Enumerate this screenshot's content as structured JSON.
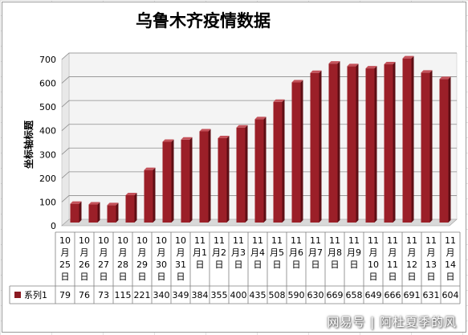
{
  "chart_data": {
    "type": "bar",
    "title": "乌鲁木齐疫情数据",
    "ylabel": "坐标轴标题",
    "xlabel": "",
    "ylim": [
      0,
      700
    ],
    "yticks": [
      0,
      100,
      200,
      300,
      400,
      500,
      600,
      700
    ],
    "grid": true,
    "categories": [
      [
        "10",
        "月",
        "25",
        "日"
      ],
      [
        "10",
        "月",
        "26",
        "日"
      ],
      [
        "10",
        "月",
        "27",
        "日"
      ],
      [
        "10",
        "月",
        "28",
        "日"
      ],
      [
        "10",
        "月",
        "29",
        "日"
      ],
      [
        "10",
        "月",
        "30",
        "日"
      ],
      [
        "10",
        "月",
        "31",
        "日"
      ],
      [
        "11",
        "月1",
        "日"
      ],
      [
        "11",
        "月2",
        "日"
      ],
      [
        "11",
        "月3",
        "日"
      ],
      [
        "11",
        "月4",
        "日"
      ],
      [
        "11",
        "月5",
        "日"
      ],
      [
        "11",
        "月6",
        "日"
      ],
      [
        "11",
        "月7",
        "日"
      ],
      [
        "11",
        "月8",
        "日"
      ],
      [
        "11",
        "月9",
        "日"
      ],
      [
        "11",
        "月",
        "10",
        "日"
      ],
      [
        "11",
        "月",
        "11",
        "日"
      ],
      [
        "11",
        "月",
        "12",
        "日"
      ],
      [
        "11",
        "月",
        "13",
        "日"
      ],
      [
        "11",
        "月",
        "14",
        "日"
      ]
    ],
    "series": [
      {
        "name": "系列1",
        "color": "#8b1a22",
        "values": [
          79,
          76,
          73,
          115,
          221,
          340,
          349,
          384,
          355,
          400,
          435,
          508,
          590,
          630,
          669,
          658,
          649,
          666,
          691,
          631,
          604
        ]
      }
    ],
    "colors": {
      "bar_front": "#9b1f28",
      "bar_side": "#5e0e14",
      "bar_top": "#c4525a",
      "wall": "#f4f4f4"
    }
  },
  "watermark": "网易号 | 阿杜夏季的风"
}
